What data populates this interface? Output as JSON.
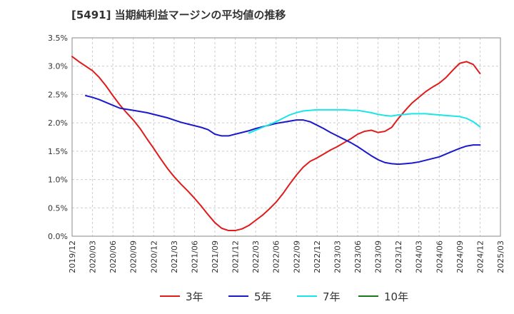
{
  "title": "[5491]  当期純利益マージンの平均値の推移",
  "chart_data": {
    "type": "line",
    "title": "[5491]  当期純利益マージンの平均値の推移",
    "xlabel": "",
    "ylabel": "",
    "x_ticks": [
      "2019/12",
      "2020/03",
      "2020/06",
      "2020/09",
      "2020/12",
      "2021/03",
      "2021/06",
      "2021/09",
      "2021/12",
      "2022/03",
      "2022/06",
      "2022/09",
      "2022/12",
      "2023/03",
      "2023/06",
      "2023/09",
      "2023/12",
      "2024/03",
      "2024/06",
      "2024/09",
      "2024/12",
      "2025/03"
    ],
    "y_ticks": [
      "0.0%",
      "0.5%",
      "1.0%",
      "1.5%",
      "2.0%",
      "2.5%",
      "3.0%",
      "3.5%"
    ],
    "ylim": [
      0,
      3.5
    ],
    "grid": true,
    "legend_position": "bottom",
    "series": [
      {
        "name": "3年",
        "color": "#e01b1b",
        "points": [
          [
            "2019/12",
            3.17
          ],
          [
            "2020/01",
            3.08
          ],
          [
            "2020/02",
            3.0
          ],
          [
            "2020/03",
            2.92
          ],
          [
            "2020/04",
            2.8
          ],
          [
            "2020/05",
            2.65
          ],
          [
            "2020/06",
            2.48
          ],
          [
            "2020/07",
            2.32
          ],
          [
            "2020/08",
            2.18
          ],
          [
            "2020/09",
            2.05
          ],
          [
            "2020/10",
            1.9
          ],
          [
            "2020/11",
            1.72
          ],
          [
            "2020/12",
            1.55
          ],
          [
            "2021/01",
            1.37
          ],
          [
            "2021/02",
            1.2
          ],
          [
            "2021/03",
            1.05
          ],
          [
            "2021/04",
            0.92
          ],
          [
            "2021/05",
            0.8
          ],
          [
            "2021/06",
            0.67
          ],
          [
            "2021/07",
            0.53
          ],
          [
            "2021/08",
            0.38
          ],
          [
            "2021/09",
            0.24
          ],
          [
            "2021/10",
            0.14
          ],
          [
            "2021/11",
            0.1
          ],
          [
            "2021/12",
            0.1
          ],
          [
            "2022/01",
            0.13
          ],
          [
            "2022/02",
            0.19
          ],
          [
            "2022/03",
            0.28
          ],
          [
            "2022/04",
            0.37
          ],
          [
            "2022/05",
            0.48
          ],
          [
            "2022/06",
            0.6
          ],
          [
            "2022/07",
            0.75
          ],
          [
            "2022/08",
            0.92
          ],
          [
            "2022/09",
            1.08
          ],
          [
            "2022/10",
            1.22
          ],
          [
            "2022/11",
            1.32
          ],
          [
            "2022/12",
            1.38
          ],
          [
            "2023/01",
            1.45
          ],
          [
            "2023/02",
            1.52
          ],
          [
            "2023/03",
            1.58
          ],
          [
            "2023/04",
            1.65
          ],
          [
            "2023/05",
            1.72
          ],
          [
            "2023/06",
            1.8
          ],
          [
            "2023/07",
            1.85
          ],
          [
            "2023/08",
            1.87
          ],
          [
            "2023/09",
            1.83
          ],
          [
            "2023/10",
            1.85
          ],
          [
            "2023/11",
            1.92
          ],
          [
            "2023/12",
            2.08
          ],
          [
            "2024/01",
            2.22
          ],
          [
            "2024/02",
            2.35
          ],
          [
            "2024/03",
            2.45
          ],
          [
            "2024/04",
            2.55
          ],
          [
            "2024/05",
            2.63
          ],
          [
            "2024/06",
            2.7
          ],
          [
            "2024/07",
            2.8
          ],
          [
            "2024/08",
            2.93
          ],
          [
            "2024/09",
            3.05
          ],
          [
            "2024/10",
            3.08
          ],
          [
            "2024/11",
            3.03
          ],
          [
            "2024/12",
            2.87
          ]
        ]
      },
      {
        "name": "5年",
        "color": "#1a1acc",
        "points": [
          [
            "2020/02",
            2.48
          ],
          [
            "2020/03",
            2.45
          ],
          [
            "2020/04",
            2.41
          ],
          [
            "2020/05",
            2.36
          ],
          [
            "2020/06",
            2.31
          ],
          [
            "2020/07",
            2.26
          ],
          [
            "2020/08",
            2.24
          ],
          [
            "2020/09",
            2.22
          ],
          [
            "2020/10",
            2.2
          ],
          [
            "2020/11",
            2.18
          ],
          [
            "2020/12",
            2.15
          ],
          [
            "2021/01",
            2.12
          ],
          [
            "2021/02",
            2.09
          ],
          [
            "2021/03",
            2.05
          ],
          [
            "2021/04",
            2.01
          ],
          [
            "2021/05",
            1.98
          ],
          [
            "2021/06",
            1.95
          ],
          [
            "2021/07",
            1.92
          ],
          [
            "2021/08",
            1.88
          ],
          [
            "2021/09",
            1.8
          ],
          [
            "2021/10",
            1.77
          ],
          [
            "2021/11",
            1.77
          ],
          [
            "2021/12",
            1.8
          ],
          [
            "2022/01",
            1.83
          ],
          [
            "2022/02",
            1.86
          ],
          [
            "2022/03",
            1.9
          ],
          [
            "2022/04",
            1.93
          ],
          [
            "2022/05",
            1.96
          ],
          [
            "2022/06",
            1.99
          ],
          [
            "2022/07",
            2.01
          ],
          [
            "2022/08",
            2.03
          ],
          [
            "2022/09",
            2.05
          ],
          [
            "2022/10",
            2.05
          ],
          [
            "2022/11",
            2.02
          ],
          [
            "2022/12",
            1.96
          ],
          [
            "2023/01",
            1.9
          ],
          [
            "2023/02",
            1.83
          ],
          [
            "2023/03",
            1.77
          ],
          [
            "2023/04",
            1.71
          ],
          [
            "2023/05",
            1.65
          ],
          [
            "2023/06",
            1.58
          ],
          [
            "2023/07",
            1.5
          ],
          [
            "2023/08",
            1.42
          ],
          [
            "2023/09",
            1.35
          ],
          [
            "2023/10",
            1.3
          ],
          [
            "2023/11",
            1.28
          ],
          [
            "2023/12",
            1.27
          ],
          [
            "2024/01",
            1.28
          ],
          [
            "2024/02",
            1.29
          ],
          [
            "2024/03",
            1.31
          ],
          [
            "2024/04",
            1.34
          ],
          [
            "2024/05",
            1.37
          ],
          [
            "2024/06",
            1.4
          ],
          [
            "2024/07",
            1.45
          ],
          [
            "2024/08",
            1.5
          ],
          [
            "2024/09",
            1.55
          ],
          [
            "2024/10",
            1.59
          ],
          [
            "2024/11",
            1.61
          ],
          [
            "2024/12",
            1.61
          ]
        ]
      },
      {
        "name": "7年",
        "color": "#19e6e6",
        "points": [
          [
            "2022/02",
            1.82
          ],
          [
            "2022/03",
            1.87
          ],
          [
            "2022/04",
            1.92
          ],
          [
            "2022/05",
            1.97
          ],
          [
            "2022/06",
            2.02
          ],
          [
            "2022/07",
            2.08
          ],
          [
            "2022/08",
            2.14
          ],
          [
            "2022/09",
            2.18
          ],
          [
            "2022/10",
            2.21
          ],
          [
            "2022/11",
            2.22
          ],
          [
            "2022/12",
            2.23
          ],
          [
            "2023/01",
            2.23
          ],
          [
            "2023/02",
            2.23
          ],
          [
            "2023/03",
            2.23
          ],
          [
            "2023/04",
            2.23
          ],
          [
            "2023/05",
            2.22
          ],
          [
            "2023/06",
            2.22
          ],
          [
            "2023/07",
            2.2
          ],
          [
            "2023/08",
            2.18
          ],
          [
            "2023/09",
            2.15
          ],
          [
            "2023/10",
            2.13
          ],
          [
            "2023/11",
            2.12
          ],
          [
            "2023/12",
            2.14
          ],
          [
            "2024/01",
            2.15
          ],
          [
            "2024/02",
            2.16
          ],
          [
            "2024/03",
            2.16
          ],
          [
            "2024/04",
            2.16
          ],
          [
            "2024/05",
            2.15
          ],
          [
            "2024/06",
            2.14
          ],
          [
            "2024/07",
            2.13
          ],
          [
            "2024/08",
            2.12
          ],
          [
            "2024/09",
            2.11
          ],
          [
            "2024/10",
            2.08
          ],
          [
            "2024/11",
            2.02
          ],
          [
            "2024/12",
            1.93
          ]
        ]
      },
      {
        "name": "10年",
        "color": "#1a7a1a",
        "points": []
      }
    ]
  }
}
